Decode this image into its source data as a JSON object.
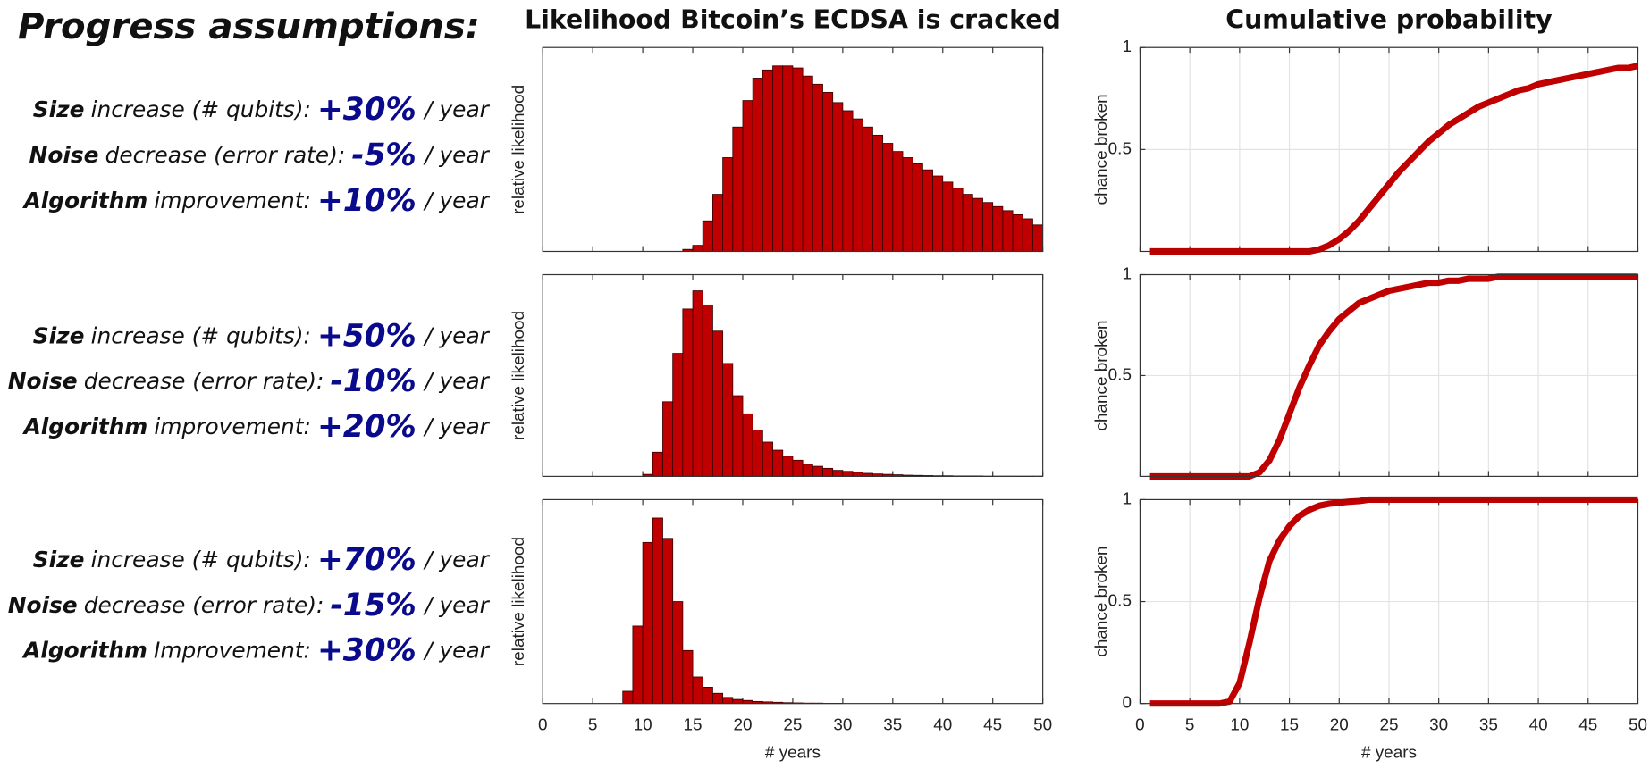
{
  "assumptions": {
    "title": "Progress assumptions:",
    "scenarios": [
      [
        {
          "term": "Size",
          "text": "increase (# qubits):",
          "rate": "+30%",
          "unit": "/ year"
        },
        {
          "term": "Noise",
          "text": "decrease (error rate):",
          "rate": "-5%",
          "unit": "/ year"
        },
        {
          "term": "Algorithm",
          "text": "improvement:",
          "rate": "+10%",
          "unit": "/ year"
        }
      ],
      [
        {
          "term": "Size",
          "text": "increase (# qubits):",
          "rate": "+50%",
          "unit": "/ year"
        },
        {
          "term": "Noise",
          "text": "decrease (error rate):",
          "rate": "-10%",
          "unit": "/ year"
        },
        {
          "term": "Algorithm",
          "text": "improvement:",
          "rate": "+20%",
          "unit": "/ year"
        }
      ],
      [
        {
          "term": "Size",
          "text": "increase (# qubits):",
          "rate": "+70%",
          "unit": "/ year"
        },
        {
          "term": "Noise",
          "text": "decrease (error rate):",
          "rate": "-15%",
          "unit": "/ year"
        },
        {
          "term": "Algorithm",
          "text": "Improvement:",
          "rate": "+30%",
          "unit": "/ year"
        }
      ]
    ]
  },
  "chart_data": [
    {
      "type": "histogram",
      "title": "Likelihood Bitcoin’s ECDSA is cracked",
      "ylabel": "relative likelihood",
      "color": "#c00000",
      "bins": [
        0,
        1,
        2,
        3,
        4,
        5,
        6,
        7,
        8,
        9,
        10,
        11,
        12,
        13,
        14,
        15,
        16,
        17,
        18,
        19,
        20,
        21,
        22,
        23,
        24,
        25,
        26,
        27,
        28,
        29,
        30,
        31,
        32,
        33,
        34,
        35,
        36,
        37,
        38,
        39,
        40,
        41,
        42,
        43,
        44,
        45,
        46,
        47,
        48,
        49,
        50
      ],
      "values": [
        0,
        0,
        0,
        0,
        0,
        0,
        0,
        0,
        0,
        0,
        0,
        0,
        0,
        0,
        0.01,
        0.03,
        0.15,
        0.28,
        0.46,
        0.61,
        0.74,
        0.85,
        0.89,
        0.91,
        0.91,
        0.9,
        0.86,
        0.82,
        0.78,
        0.73,
        0.69,
        0.65,
        0.61,
        0.57,
        0.53,
        0.49,
        0.46,
        0.43,
        0.4,
        0.37,
        0.34,
        0.31,
        0.28,
        0.26,
        0.24,
        0.22,
        0.2,
        0.18,
        0.16,
        0.13
      ],
      "xlim": [
        0,
        50
      ],
      "ylim": [
        0,
        1
      ],
      "xticks": [
        0,
        5,
        10,
        15,
        20,
        25,
        30,
        35,
        40,
        45,
        50
      ]
    },
    {
      "type": "line",
      "title": "Cumulative probability",
      "ylabel": "chance broken",
      "color": "#c00000",
      "grid": true,
      "x": [
        1,
        2,
        3,
        4,
        5,
        6,
        7,
        8,
        9,
        10,
        11,
        12,
        13,
        14,
        15,
        16,
        17,
        18,
        19,
        20,
        21,
        22,
        23,
        24,
        25,
        26,
        27,
        28,
        29,
        30,
        31,
        32,
        33,
        34,
        35,
        36,
        37,
        38,
        39,
        40,
        41,
        42,
        43,
        44,
        45,
        46,
        47,
        48,
        49,
        50
      ],
      "values": [
        0,
        0,
        0,
        0,
        0,
        0,
        0,
        0,
        0,
        0,
        0,
        0,
        0,
        0,
        0,
        0,
        0,
        0.01,
        0.03,
        0.06,
        0.1,
        0.15,
        0.21,
        0.27,
        0.33,
        0.39,
        0.44,
        0.49,
        0.54,
        0.58,
        0.62,
        0.65,
        0.68,
        0.71,
        0.73,
        0.75,
        0.77,
        0.79,
        0.8,
        0.82,
        0.83,
        0.84,
        0.85,
        0.86,
        0.87,
        0.88,
        0.89,
        0.9,
        0.9,
        0.91
      ],
      "xlim": [
        0,
        50
      ],
      "ylim": [
        0,
        1
      ],
      "xticks": [
        0,
        5,
        10,
        15,
        20,
        25,
        30,
        35,
        40,
        45,
        50
      ],
      "yticks": [
        0.5,
        1
      ]
    },
    {
      "type": "histogram",
      "ylabel": "relative likelihood",
      "color": "#c00000",
      "bins": [
        0,
        1,
        2,
        3,
        4,
        5,
        6,
        7,
        8,
        9,
        10,
        11,
        12,
        13,
        14,
        15,
        16,
        17,
        18,
        19,
        20,
        21,
        22,
        23,
        24,
        25,
        26,
        27,
        28,
        29,
        30,
        31,
        32,
        33,
        34,
        35,
        36,
        37,
        38,
        39,
        40,
        41,
        42,
        43,
        44,
        45,
        46,
        47,
        48,
        49,
        50
      ],
      "values": [
        0,
        0,
        0,
        0,
        0,
        0,
        0,
        0,
        0,
        0,
        0.01,
        0.12,
        0.37,
        0.61,
        0.83,
        0.92,
        0.85,
        0.72,
        0.56,
        0.4,
        0.31,
        0.23,
        0.17,
        0.13,
        0.1,
        0.08,
        0.06,
        0.05,
        0.04,
        0.03,
        0.025,
        0.02,
        0.015,
        0.012,
        0.01,
        0.008,
        0.006,
        0.005,
        0.004,
        0.003,
        0.003,
        0.002,
        0.002,
        0.002,
        0.001,
        0.001,
        0.001,
        0.001,
        0.001,
        0.001
      ],
      "xlim": [
        0,
        50
      ],
      "ylim": [
        0,
        1
      ],
      "xticks": [
        0,
        5,
        10,
        15,
        20,
        25,
        30,
        35,
        40,
        45,
        50
      ]
    },
    {
      "type": "line",
      "ylabel": "chance broken",
      "color": "#c00000",
      "grid": true,
      "x": [
        1,
        2,
        3,
        4,
        5,
        6,
        7,
        8,
        9,
        10,
        11,
        12,
        13,
        14,
        15,
        16,
        17,
        18,
        19,
        20,
        21,
        22,
        23,
        24,
        25,
        26,
        27,
        28,
        29,
        30,
        31,
        32,
        33,
        34,
        35,
        36,
        37,
        38,
        39,
        40,
        41,
        42,
        43,
        44,
        45,
        46,
        47,
        48,
        49,
        50
      ],
      "values": [
        0,
        0,
        0,
        0,
        0,
        0,
        0,
        0,
        0,
        0,
        0,
        0.02,
        0.08,
        0.18,
        0.31,
        0.44,
        0.55,
        0.65,
        0.72,
        0.78,
        0.82,
        0.86,
        0.88,
        0.9,
        0.92,
        0.93,
        0.94,
        0.95,
        0.96,
        0.96,
        0.97,
        0.97,
        0.98,
        0.98,
        0.98,
        0.99,
        0.99,
        0.99,
        0.99,
        0.99,
        0.99,
        0.99,
        0.99,
        0.99,
        0.99,
        0.99,
        0.99,
        0.99,
        0.99,
        0.99
      ],
      "xlim": [
        0,
        50
      ],
      "ylim": [
        0,
        1
      ],
      "xticks": [
        0,
        5,
        10,
        15,
        20,
        25,
        30,
        35,
        40,
        45,
        50
      ],
      "yticks": [
        0.5,
        1
      ]
    },
    {
      "type": "histogram",
      "ylabel": "relative likelihood",
      "xlabel": "# years",
      "color": "#c00000",
      "bins": [
        0,
        1,
        2,
        3,
        4,
        5,
        6,
        7,
        8,
        9,
        10,
        11,
        12,
        13,
        14,
        15,
        16,
        17,
        18,
        19,
        20,
        21,
        22,
        23,
        24,
        25,
        26,
        27,
        28,
        29,
        30,
        31,
        32,
        33,
        34,
        35,
        36,
        37,
        38,
        39,
        40,
        41,
        42,
        43,
        44,
        45,
        46,
        47,
        48,
        49,
        50
      ],
      "values": [
        0,
        0,
        0,
        0,
        0,
        0,
        0,
        0,
        0.06,
        0.38,
        0.79,
        0.91,
        0.81,
        0.5,
        0.26,
        0.13,
        0.08,
        0.05,
        0.03,
        0.02,
        0.015,
        0.01,
        0.008,
        0.006,
        0.004,
        0.003,
        0.002,
        0.002,
        0.001,
        0.001,
        0,
        0,
        0,
        0,
        0,
        0,
        0,
        0,
        0,
        0,
        0,
        0,
        0,
        0,
        0,
        0,
        0,
        0,
        0,
        0
      ],
      "xlim": [
        0,
        50
      ],
      "ylim": [
        0,
        1
      ],
      "xticks": [
        0,
        5,
        10,
        15,
        20,
        25,
        30,
        35,
        40,
        45,
        50
      ]
    },
    {
      "type": "line",
      "ylabel": "chance broken",
      "xlabel": "# years",
      "color": "#c00000",
      "grid": true,
      "x": [
        1,
        2,
        3,
        4,
        5,
        6,
        7,
        8,
        9,
        10,
        11,
        12,
        13,
        14,
        15,
        16,
        17,
        18,
        19,
        20,
        21,
        22,
        23,
        24,
        25,
        26,
        27,
        28,
        29,
        30,
        31,
        32,
        33,
        34,
        35,
        36,
        37,
        38,
        39,
        40,
        41,
        42,
        43,
        44,
        45,
        46,
        47,
        48,
        49,
        50
      ],
      "values": [
        0,
        0,
        0,
        0,
        0,
        0,
        0,
        0,
        0.01,
        0.1,
        0.3,
        0.52,
        0.7,
        0.8,
        0.87,
        0.92,
        0.95,
        0.97,
        0.98,
        0.985,
        0.99,
        0.993,
        1,
        1,
        1,
        1,
        1,
        1,
        1,
        1,
        1,
        1,
        1,
        1,
        1,
        1,
        1,
        1,
        1,
        1,
        1,
        1,
        1,
        1,
        1,
        1,
        1,
        1,
        1,
        1
      ],
      "xlim": [
        0,
        50
      ],
      "ylim": [
        0,
        1
      ],
      "xticks": [
        0,
        5,
        10,
        15,
        20,
        25,
        30,
        35,
        40,
        45,
        50
      ],
      "yticks": [
        0,
        0.5,
        1
      ]
    }
  ]
}
